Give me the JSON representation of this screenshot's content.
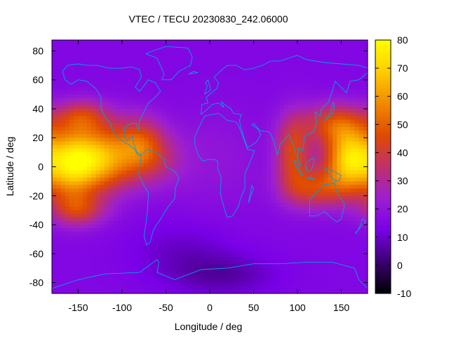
{
  "chart_data": {
    "type": "heatmap",
    "title": "VTEC / TECU 20230830_242.06000",
    "xlabel": "Longitude / deg",
    "ylabel": "Latitude / deg",
    "xlim": [
      -180,
      180
    ],
    "ylim": [
      -87.5,
      87.5
    ],
    "x_ticks": [
      -150,
      -100,
      -50,
      0,
      50,
      100,
      150
    ],
    "y_ticks": [
      -80,
      -60,
      -40,
      -20,
      0,
      20,
      40,
      60,
      80
    ],
    "colorbar": {
      "min": -10,
      "max": 80,
      "ticks": [
        -10,
        0,
        10,
        20,
        30,
        40,
        50,
        60,
        70,
        80
      ],
      "palette": [
        "#000000",
        "#3a0070",
        "#7a00e8",
        "#9c1fd0",
        "#c0306a",
        "#e04a00",
        "#f28a00",
        "#ffcd00",
        "#ffff00"
      ]
    },
    "grid": false,
    "coastline_color": "#00a0e0",
    "features": [
      {
        "type": "blob",
        "lon": -130,
        "lat": 5,
        "amplitude": 52,
        "sigma_lon": 28,
        "sigma_lat": 16
      },
      {
        "type": "blob",
        "lon": -160,
        "lat": 0,
        "amplitude": 30,
        "sigma_lon": 18,
        "sigma_lat": 18
      },
      {
        "type": "blob",
        "lon": -145,
        "lat": 35,
        "amplitude": 22,
        "sigma_lon": 22,
        "sigma_lat": 8
      },
      {
        "type": "blob",
        "lon": -150,
        "lat": -30,
        "amplitude": 22,
        "sigma_lon": 22,
        "sigma_lat": 8
      },
      {
        "type": "blob",
        "lon": -80,
        "lat": 15,
        "amplitude": 26,
        "sigma_lon": 20,
        "sigma_lat": 14
      },
      {
        "type": "blob",
        "lon": -60,
        "lat": 5,
        "amplitude": 12,
        "sigma_lon": 25,
        "sigma_lat": 14
      },
      {
        "type": "blob",
        "lon": 160,
        "lat": 5,
        "amplitude": 55,
        "sigma_lon": 20,
        "sigma_lat": 16
      },
      {
        "type": "blob",
        "lon": 140,
        "lat": 30,
        "amplitude": 26,
        "sigma_lon": 25,
        "sigma_lat": 10
      },
      {
        "type": "blob",
        "lon": 120,
        "lat": -15,
        "amplitude": 26,
        "sigma_lon": 25,
        "sigma_lat": 10
      },
      {
        "type": "blob",
        "lon": 95,
        "lat": 10,
        "amplitude": 28,
        "sigma_lon": 14,
        "sigma_lat": 18
      },
      {
        "type": "blob",
        "lon": 10,
        "lat": 5,
        "amplitude": 5,
        "sigma_lon": 40,
        "sigma_lat": 25
      },
      {
        "type": "blob",
        "lon": -30,
        "lat": -60,
        "amplitude": -6,
        "sigma_lon": 40,
        "sigma_lat": 15
      },
      {
        "type": "blob",
        "lon": 20,
        "lat": -75,
        "amplitude": -8,
        "sigma_lon": 40,
        "sigma_lat": 10
      }
    ],
    "baseline": 15
  }
}
